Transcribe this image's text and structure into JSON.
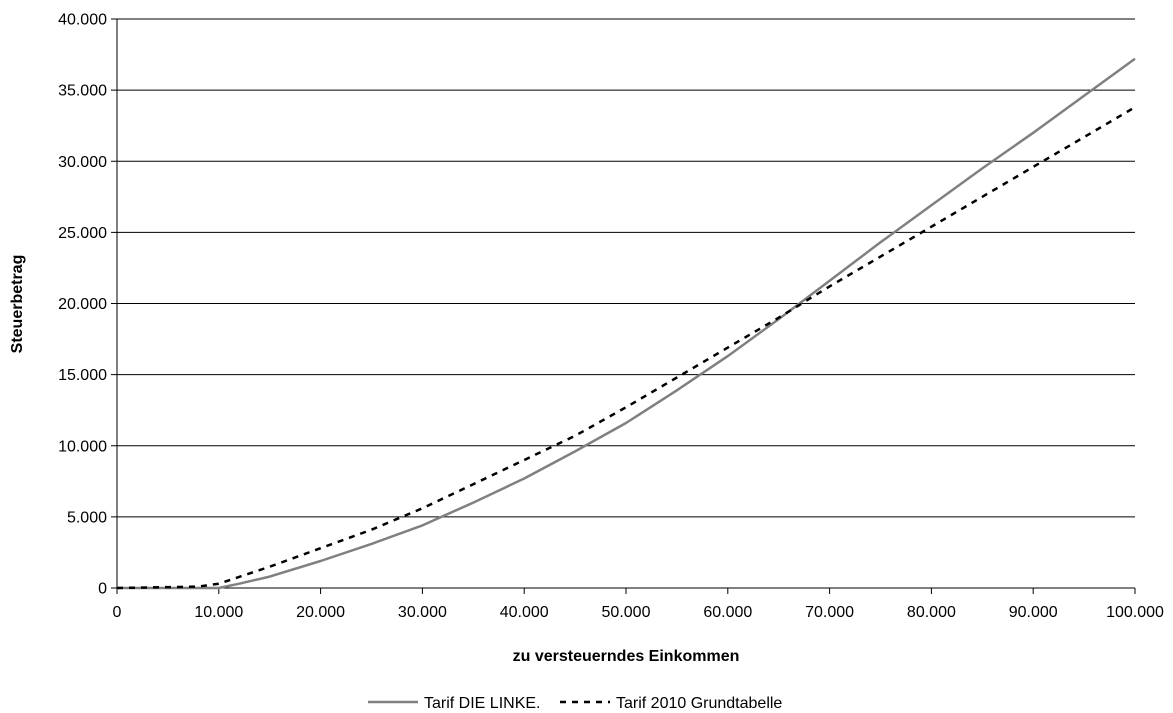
{
  "chart_data": {
    "type": "line",
    "title": "",
    "xlabel": "zu versteuerndes Einkommen",
    "ylabel": "Steuerbetrag",
    "xlim": [
      0,
      100000
    ],
    "ylim": [
      0,
      40000
    ],
    "grid": "horizontal",
    "legend_position": "bottom",
    "x_ticks": [
      "0",
      "10.000",
      "20.000",
      "30.000",
      "40.000",
      "50.000",
      "60.000",
      "70.000",
      "80.000",
      "90.000",
      "100.000"
    ],
    "y_ticks": [
      "0",
      "5.000",
      "10.000",
      "15.000",
      "20.000",
      "25.000",
      "30.000",
      "35.000",
      "40.000"
    ],
    "series": [
      {
        "name": "Tarif DIE LINKE.",
        "style": "solid",
        "color": "#808080",
        "x": [
          0,
          10000,
          12000,
          15000,
          20000,
          25000,
          30000,
          35000,
          40000,
          45000,
          50000,
          55000,
          60000,
          65000,
          70000,
          75000,
          80000,
          85000,
          90000,
          95000,
          100000
        ],
        "y": [
          0,
          0,
          300,
          800,
          1900,
          3100,
          4400,
          6000,
          7700,
          9600,
          11600,
          13900,
          16300,
          18900,
          21600,
          24300,
          26900,
          29500,
          32000,
          34600,
          37200
        ]
      },
      {
        "name": "Tarif 2010 Grundtabelle",
        "style": "dashed",
        "color": "#000000",
        "x": [
          0,
          8000,
          10000,
          15000,
          20000,
          25000,
          30000,
          35000,
          40000,
          45000,
          50000,
          55000,
          60000,
          65000,
          70000,
          75000,
          80000,
          85000,
          90000,
          95000,
          100000
        ],
        "y": [
          0,
          100,
          300,
          1500,
          2800,
          4100,
          5600,
          7300,
          9000,
          10700,
          12700,
          14800,
          16900,
          19000,
          21200,
          23300,
          25400,
          27500,
          29600,
          31700,
          33800
        ]
      }
    ]
  }
}
